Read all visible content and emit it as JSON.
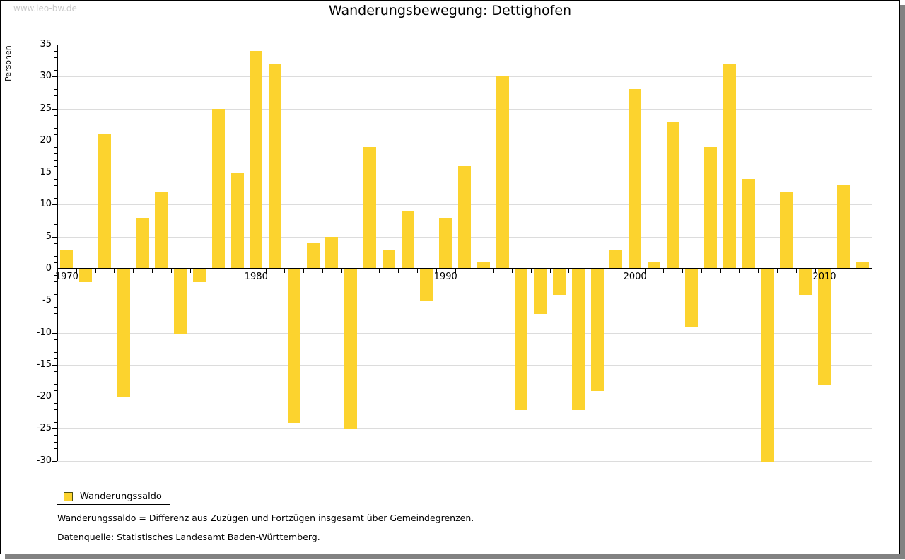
{
  "watermark": "www.leo-bw.de",
  "chart_data": {
    "type": "bar",
    "title": "Wanderungsbewegung: Dettighofen",
    "ylabel": "Personen",
    "xlabel": "",
    "categories": [
      1970,
      1971,
      1972,
      1973,
      1974,
      1975,
      1976,
      1977,
      1978,
      1979,
      1980,
      1981,
      1982,
      1983,
      1984,
      1985,
      1986,
      1987,
      1988,
      1989,
      1990,
      1991,
      1992,
      1993,
      1994,
      1995,
      1996,
      1997,
      1998,
      1999,
      2000,
      2001,
      2002,
      2003,
      2004,
      2005,
      2006,
      2007,
      2008,
      2009,
      2010,
      2011,
      2012
    ],
    "values": [
      3,
      -2,
      21,
      -20,
      8,
      12,
      -10,
      -2,
      25,
      15,
      34,
      32,
      -24,
      4,
      5,
      -25,
      19,
      3,
      9,
      -5,
      8,
      16,
      1,
      30,
      -22,
      -7,
      -4,
      -22,
      -19,
      3,
      28,
      1,
      23,
      -9,
      19,
      32,
      14,
      -30,
      12,
      -4,
      -18,
      13,
      1
    ],
    "ylim": [
      -30,
      35
    ],
    "ytick_step": 5,
    "labeled_xticks": [
      1970,
      1980,
      1990,
      2000,
      2010
    ],
    "grid": true,
    "legend": {
      "label": "Wanderungssaldo",
      "position": "bottom-left"
    },
    "bar_color": "#FCD32E",
    "gridline_color": "#dcdcdc",
    "axis_color": "#000000"
  },
  "footnotes": [
    "Wanderungssaldo = Differenz aus Zuzügen und Fortzügen insgesamt über Gemeindegrenzen.",
    "Datenquelle: Statistisches Landesamt Baden-Württemberg."
  ]
}
